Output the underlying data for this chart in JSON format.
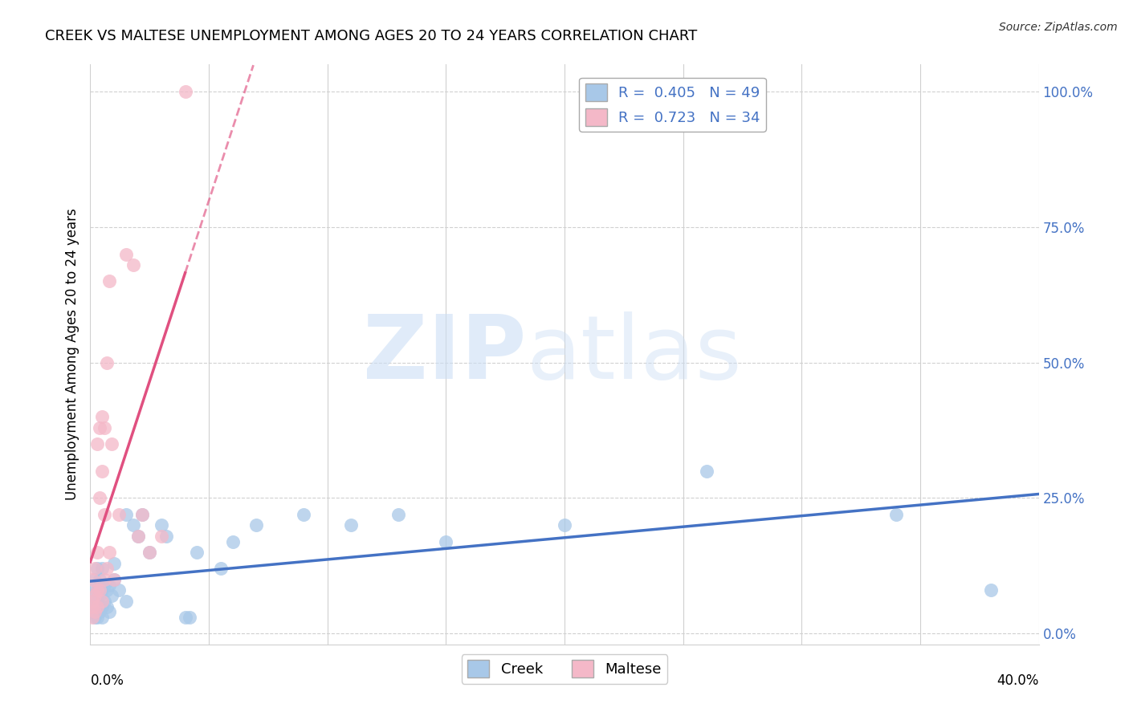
{
  "title": "CREEK VS MALTESE UNEMPLOYMENT AMONG AGES 20 TO 24 YEARS CORRELATION CHART",
  "source": "Source: ZipAtlas.com",
  "ylabel": "Unemployment Among Ages 20 to 24 years",
  "legend_creek": "Creek",
  "legend_maltese": "Maltese",
  "creek_R": "0.405",
  "creek_N": "49",
  "maltese_R": "0.723",
  "maltese_N": "34",
  "creek_color": "#a8c8e8",
  "creek_line_color": "#4472c4",
  "maltese_color": "#f4b8c8",
  "maltese_line_color": "#e05080",
  "watermark_color_zip": "#ccdff5",
  "watermark_color_atlas": "#ccdff5",
  "xlim": [
    0.0,
    0.4
  ],
  "ylim": [
    -0.02,
    1.05
  ],
  "creek_x": [
    0.001,
    0.001,
    0.001,
    0.002,
    0.002,
    0.002,
    0.003,
    0.003,
    0.003,
    0.003,
    0.004,
    0.004,
    0.004,
    0.005,
    0.005,
    0.005,
    0.005,
    0.006,
    0.006,
    0.007,
    0.007,
    0.008,
    0.008,
    0.009,
    0.01,
    0.01,
    0.012,
    0.015,
    0.015,
    0.018,
    0.02,
    0.022,
    0.025,
    0.03,
    0.032,
    0.04,
    0.042,
    0.045,
    0.055,
    0.06,
    0.07,
    0.09,
    0.11,
    0.13,
    0.15,
    0.2,
    0.26,
    0.34,
    0.38
  ],
  "creek_y": [
    0.04,
    0.06,
    0.08,
    0.03,
    0.05,
    0.1,
    0.03,
    0.06,
    0.08,
    0.12,
    0.04,
    0.07,
    0.1,
    0.03,
    0.05,
    0.08,
    0.12,
    0.06,
    0.09,
    0.05,
    0.08,
    0.04,
    0.09,
    0.07,
    0.1,
    0.13,
    0.08,
    0.22,
    0.06,
    0.2,
    0.18,
    0.22,
    0.15,
    0.2,
    0.18,
    0.03,
    0.03,
    0.15,
    0.12,
    0.17,
    0.2,
    0.22,
    0.2,
    0.22,
    0.17,
    0.2,
    0.3,
    0.22,
    0.08
  ],
  "maltese_x": [
    0.001,
    0.001,
    0.001,
    0.001,
    0.002,
    0.002,
    0.002,
    0.003,
    0.003,
    0.003,
    0.003,
    0.004,
    0.004,
    0.004,
    0.005,
    0.005,
    0.005,
    0.006,
    0.006,
    0.006,
    0.007,
    0.007,
    0.008,
    0.008,
    0.009,
    0.01,
    0.012,
    0.015,
    0.018,
    0.02,
    0.022,
    0.025,
    0.03,
    0.04
  ],
  "maltese_y": [
    0.03,
    0.05,
    0.06,
    0.1,
    0.04,
    0.07,
    0.12,
    0.05,
    0.08,
    0.15,
    0.35,
    0.08,
    0.25,
    0.38,
    0.06,
    0.3,
    0.4,
    0.1,
    0.22,
    0.38,
    0.12,
    0.5,
    0.15,
    0.65,
    0.35,
    0.1,
    0.22,
    0.7,
    0.68,
    0.18,
    0.22,
    0.15,
    0.18,
    1.0
  ]
}
